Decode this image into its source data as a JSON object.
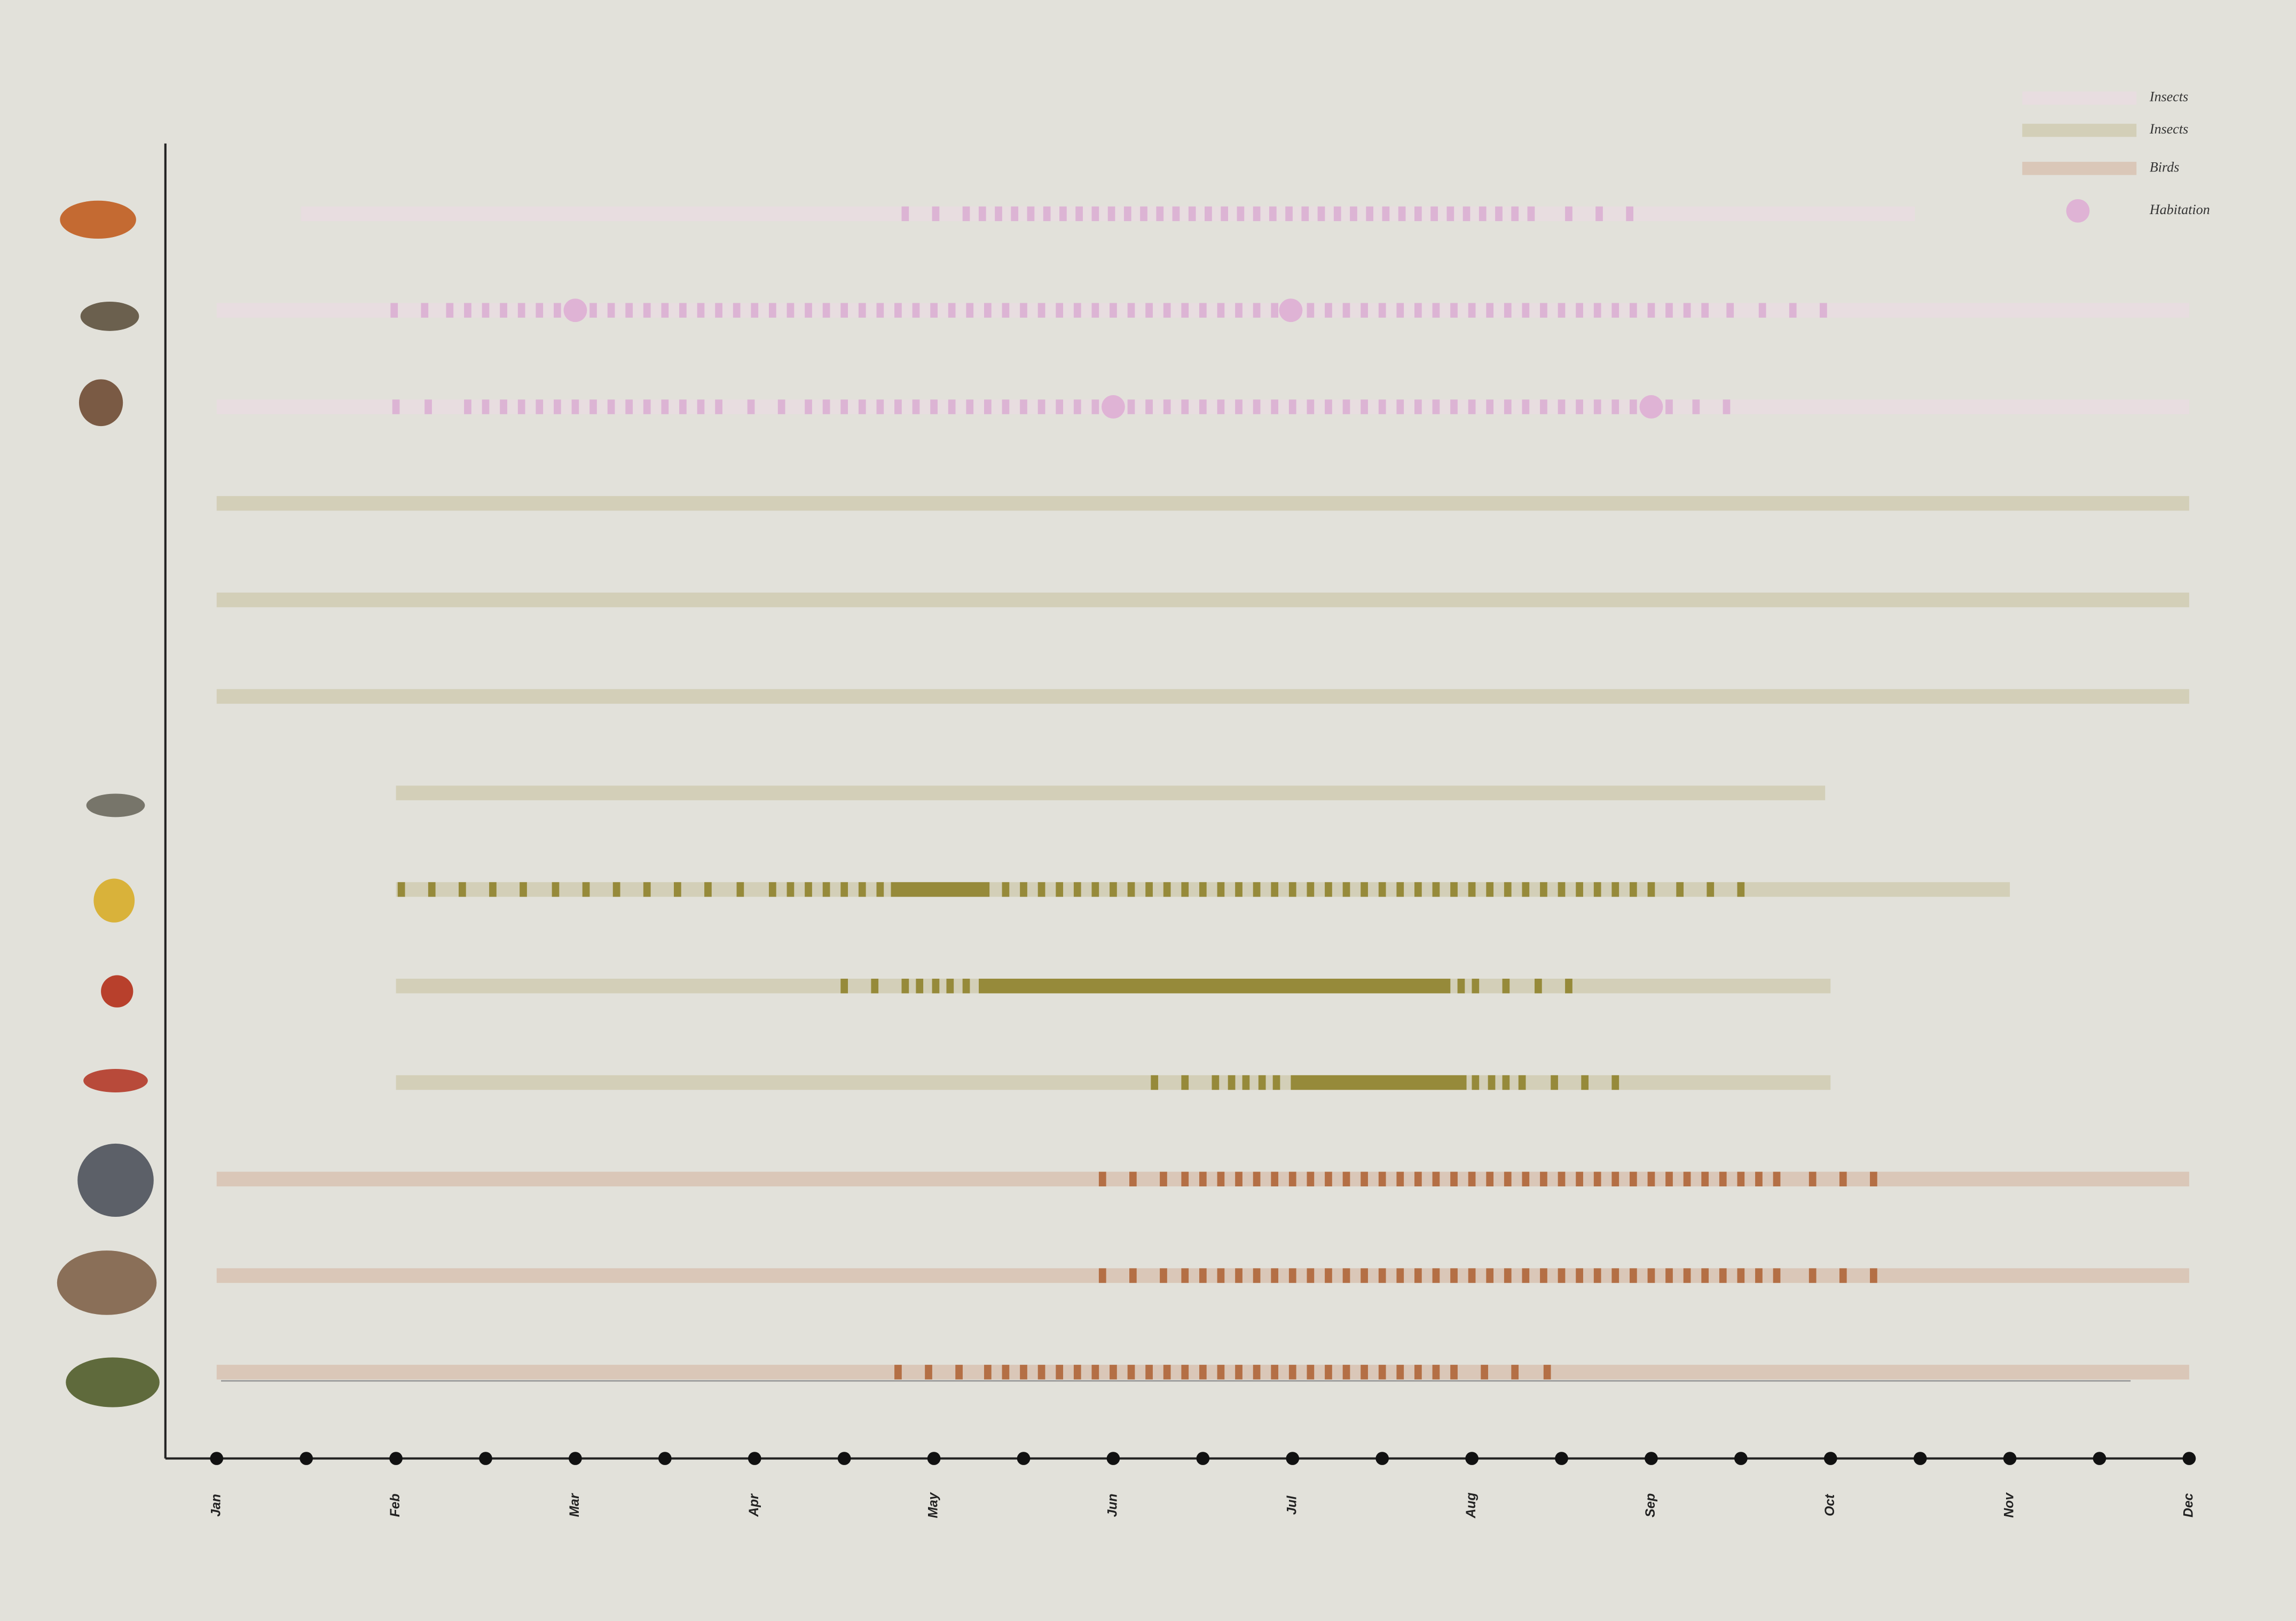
{
  "chart_data": {
    "type": "timeline",
    "xlim": [
      0,
      11
    ],
    "xticks": [
      {
        "value": 0,
        "label": "Jan"
      },
      {
        "value": 1,
        "label": "Feb"
      },
      {
        "value": 2,
        "label": "Mar"
      },
      {
        "value": 3,
        "label": "Apr"
      },
      {
        "value": 4,
        "label": "May"
      },
      {
        "value": 5,
        "label": "Jun"
      },
      {
        "value": 6,
        "label": "Jul"
      },
      {
        "value": 7,
        "label": "Aug"
      },
      {
        "value": 8,
        "label": "Sep"
      },
      {
        "value": 9,
        "label": "Oct"
      },
      {
        "value": 10,
        "label": "Nov"
      },
      {
        "value": 11,
        "label": "Dec"
      }
    ],
    "xminorticks": [
      0.5,
      1.5,
      2.5,
      3.5,
      4.5,
      5.5,
      6.5,
      7.5,
      8.5,
      9.5,
      10.5
    ],
    "series": [
      {
        "name": "Insects",
        "color": "#e8dde0",
        "mark_color": "#dcb4d4"
      },
      {
        "name": "Insects",
        "color": "#d3cfb8",
        "mark_color": "#968a3a"
      },
      {
        "name": "Birds",
        "color": "#dac7b8",
        "mark_color": "#b46f45"
      },
      {
        "name": "Habitation",
        "color": "#dfb3d5"
      }
    ],
    "rows": [
      {
        "group": 0,
        "range": [
          0.47,
          9.47
        ],
        "bars": [],
        "dots": [],
        "dashes": [
          3.84,
          4.01,
          4.18,
          4.27,
          4.36,
          4.45,
          4.54,
          4.63,
          4.72,
          4.81,
          4.9,
          4.99,
          5.08,
          5.17,
          5.26,
          5.35,
          5.44,
          5.53,
          5.62,
          5.71,
          5.8,
          5.89,
          5.98,
          6.07,
          6.16,
          6.25,
          6.34,
          6.43,
          6.52,
          6.61,
          6.7,
          6.79,
          6.88,
          6.97,
          7.06,
          7.15,
          7.24,
          7.33,
          7.54,
          7.71,
          7.88
        ]
      },
      {
        "group": 0,
        "range": [
          0,
          11
        ],
        "bars": [],
        "dots": [
          2,
          5.99
        ],
        "dashes": [
          0.99,
          1.16,
          1.3,
          1.4,
          1.5,
          1.6,
          1.7,
          1.8,
          1.9,
          2.1,
          2.2,
          2.3,
          2.4,
          2.5,
          2.6,
          2.7,
          2.8,
          2.9,
          3,
          3.1,
          3.2,
          3.3,
          3.4,
          3.5,
          3.6,
          3.7,
          3.8,
          3.9,
          4,
          4.1,
          4.2,
          4.3,
          4.4,
          4.5,
          4.6,
          4.7,
          4.8,
          4.9,
          5,
          5.1,
          5.2,
          5.3,
          5.4,
          5.5,
          5.6,
          5.7,
          5.8,
          5.9,
          6.1,
          6.2,
          6.3,
          6.4,
          6.5,
          6.6,
          6.7,
          6.8,
          6.9,
          7,
          7.1,
          7.2,
          7.3,
          7.4,
          7.5,
          7.6,
          7.7,
          7.8,
          7.9,
          8,
          8.1,
          8.2,
          8.3,
          8.44,
          8.62,
          8.79,
          8.96
        ]
      },
      {
        "group": 0,
        "range": [
          0,
          11
        ],
        "bars": [],
        "dots": [
          5,
          8
        ],
        "dashes": [
          1,
          1.18,
          1.4,
          1.5,
          1.6,
          1.7,
          1.8,
          1.9,
          2,
          2.1,
          2.2,
          2.3,
          2.4,
          2.5,
          2.6,
          2.7,
          2.8,
          2.98,
          3.15,
          3.3,
          3.4,
          3.5,
          3.6,
          3.7,
          3.8,
          3.9,
          4,
          4.1,
          4.2,
          4.3,
          4.4,
          4.5,
          4.6,
          4.7,
          4.8,
          4.9,
          5.1,
          5.2,
          5.3,
          5.4,
          5.5,
          5.6,
          5.7,
          5.8,
          5.9,
          6,
          6.1,
          6.2,
          6.3,
          6.4,
          6.5,
          6.6,
          6.7,
          6.8,
          6.9,
          7,
          7.1,
          7.2,
          7.3,
          7.4,
          7.5,
          7.6,
          7.7,
          7.8,
          7.9,
          8.1,
          8.25,
          8.42
        ]
      },
      {
        "group": 1,
        "range": [
          0,
          11
        ],
        "bars": [],
        "dots": [],
        "dashes": []
      },
      {
        "group": 1,
        "range": [
          0,
          11
        ],
        "bars": [],
        "dots": [],
        "dashes": []
      },
      {
        "group": 1,
        "range": [
          0,
          11
        ],
        "bars": [],
        "dots": [],
        "dashes": []
      },
      {
        "group": 1,
        "range": [
          1,
          8.97
        ],
        "bars": [],
        "dots": [],
        "dashes": []
      },
      {
        "group": 1,
        "range": [
          1,
          10
        ],
        "bars": [
          [
            3.76,
            4.31
          ]
        ],
        "dots": [],
        "dashes": [
          1.03,
          1.2,
          1.37,
          1.54,
          1.71,
          1.89,
          2.06,
          2.23,
          2.4,
          2.57,
          2.74,
          2.92,
          3.1,
          3.2,
          3.3,
          3.4,
          3.5,
          3.6,
          3.7,
          4.4,
          4.5,
          4.6,
          4.7,
          4.8,
          4.9,
          5,
          5.1,
          5.2,
          5.3,
          5.4,
          5.5,
          5.6,
          5.7,
          5.8,
          5.9,
          6,
          6.1,
          6.2,
          6.3,
          6.4,
          6.5,
          6.6,
          6.7,
          6.8,
          6.9,
          7,
          7.1,
          7.2,
          7.3,
          7.4,
          7.5,
          7.6,
          7.7,
          7.8,
          7.9,
          8,
          8.16,
          8.33,
          8.5
        ]
      },
      {
        "group": 1,
        "range": [
          1,
          9
        ],
        "bars": [
          [
            4.25,
            6.88
          ]
        ],
        "dots": [],
        "dashes": [
          3.5,
          3.67,
          3.84,
          3.92,
          4.01,
          4.09,
          4.18,
          6.94,
          7.02,
          7.19,
          7.37,
          7.54
        ]
      },
      {
        "group": 1,
        "range": [
          1,
          9
        ],
        "bars": [
          [
            5.99,
            6.97
          ]
        ],
        "dots": [],
        "dashes": [
          5.23,
          5.4,
          5.57,
          5.66,
          5.74,
          5.83,
          5.91,
          7.02,
          7.11,
          7.19,
          7.28,
          7.46,
          7.63,
          7.8
        ]
      },
      {
        "group": 2,
        "range": [
          0,
          11
        ],
        "bars": [],
        "dots": [],
        "dashes": [
          4.94,
          5.11,
          5.28,
          5.4,
          5.5,
          5.6,
          5.7,
          5.8,
          5.9,
          6,
          6.1,
          6.2,
          6.3,
          6.4,
          6.5,
          6.6,
          6.7,
          6.8,
          6.9,
          7,
          7.1,
          7.2,
          7.3,
          7.4,
          7.5,
          7.6,
          7.7,
          7.8,
          7.9,
          8,
          8.1,
          8.2,
          8.3,
          8.4,
          8.5,
          8.6,
          8.7,
          8.9,
          9.07,
          9.24
        ]
      },
      {
        "group": 2,
        "range": [
          0,
          11
        ],
        "bars": [],
        "dots": [],
        "dashes": [
          4.94,
          5.11,
          5.28,
          5.4,
          5.5,
          5.6,
          5.7,
          5.8,
          5.9,
          6,
          6.1,
          6.2,
          6.3,
          6.4,
          6.5,
          6.6,
          6.7,
          6.8,
          6.9,
          7,
          7.1,
          7.2,
          7.3,
          7.4,
          7.5,
          7.6,
          7.7,
          7.8,
          7.9,
          8,
          8.1,
          8.2,
          8.3,
          8.4,
          8.5,
          8.6,
          8.7,
          8.9,
          9.07,
          9.24
        ]
      },
      {
        "group": 2,
        "range": [
          0,
          11
        ],
        "bars": [],
        "dots": [],
        "dashes": [
          3.8,
          3.97,
          4.14,
          4.3,
          4.4,
          4.5,
          4.6,
          4.7,
          4.8,
          4.9,
          5,
          5.1,
          5.2,
          5.3,
          5.4,
          5.5,
          5.6,
          5.7,
          5.8,
          5.9,
          6,
          6.1,
          6.2,
          6.3,
          6.4,
          6.5,
          6.6,
          6.7,
          6.8,
          6.9,
          7.07,
          7.24,
          7.42
        ]
      }
    ]
  }
}
